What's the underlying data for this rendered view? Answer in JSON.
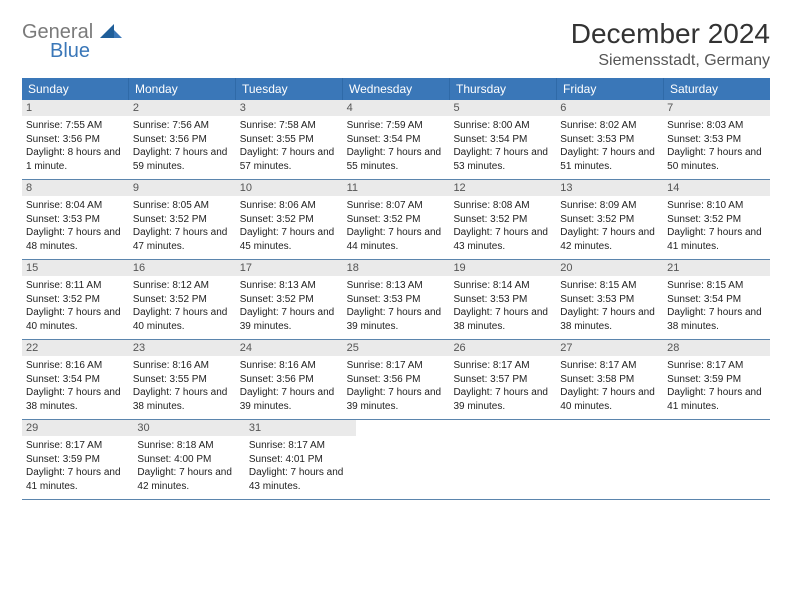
{
  "logo": {
    "word1": "General",
    "word2": "Blue"
  },
  "header": {
    "title": "December 2024",
    "location": "Siemensstadt, Germany"
  },
  "colors": {
    "header_blue": "#3a77b8",
    "row_divider": "#5b85ad",
    "daynum_bg": "#eaeaea",
    "logo_gray": "#7a7a7a",
    "logo_blue": "#3a77b8"
  },
  "typography": {
    "title_fontsize": 28,
    "location_fontsize": 16,
    "weekday_fontsize": 12,
    "daynum_fontsize": 11,
    "body_fontsize": 10
  },
  "weekdays": [
    "Sunday",
    "Monday",
    "Tuesday",
    "Wednesday",
    "Thursday",
    "Friday",
    "Saturday"
  ],
  "days": [
    {
      "n": "1",
      "sunrise": "Sunrise: 7:55 AM",
      "sunset": "Sunset: 3:56 PM",
      "daylight": "Daylight: 8 hours and 1 minute."
    },
    {
      "n": "2",
      "sunrise": "Sunrise: 7:56 AM",
      "sunset": "Sunset: 3:56 PM",
      "daylight": "Daylight: 7 hours and 59 minutes."
    },
    {
      "n": "3",
      "sunrise": "Sunrise: 7:58 AM",
      "sunset": "Sunset: 3:55 PM",
      "daylight": "Daylight: 7 hours and 57 minutes."
    },
    {
      "n": "4",
      "sunrise": "Sunrise: 7:59 AM",
      "sunset": "Sunset: 3:54 PM",
      "daylight": "Daylight: 7 hours and 55 minutes."
    },
    {
      "n": "5",
      "sunrise": "Sunrise: 8:00 AM",
      "sunset": "Sunset: 3:54 PM",
      "daylight": "Daylight: 7 hours and 53 minutes."
    },
    {
      "n": "6",
      "sunrise": "Sunrise: 8:02 AM",
      "sunset": "Sunset: 3:53 PM",
      "daylight": "Daylight: 7 hours and 51 minutes."
    },
    {
      "n": "7",
      "sunrise": "Sunrise: 8:03 AM",
      "sunset": "Sunset: 3:53 PM",
      "daylight": "Daylight: 7 hours and 50 minutes."
    },
    {
      "n": "8",
      "sunrise": "Sunrise: 8:04 AM",
      "sunset": "Sunset: 3:53 PM",
      "daylight": "Daylight: 7 hours and 48 minutes."
    },
    {
      "n": "9",
      "sunrise": "Sunrise: 8:05 AM",
      "sunset": "Sunset: 3:52 PM",
      "daylight": "Daylight: 7 hours and 47 minutes."
    },
    {
      "n": "10",
      "sunrise": "Sunrise: 8:06 AM",
      "sunset": "Sunset: 3:52 PM",
      "daylight": "Daylight: 7 hours and 45 minutes."
    },
    {
      "n": "11",
      "sunrise": "Sunrise: 8:07 AM",
      "sunset": "Sunset: 3:52 PM",
      "daylight": "Daylight: 7 hours and 44 minutes."
    },
    {
      "n": "12",
      "sunrise": "Sunrise: 8:08 AM",
      "sunset": "Sunset: 3:52 PM",
      "daylight": "Daylight: 7 hours and 43 minutes."
    },
    {
      "n": "13",
      "sunrise": "Sunrise: 8:09 AM",
      "sunset": "Sunset: 3:52 PM",
      "daylight": "Daylight: 7 hours and 42 minutes."
    },
    {
      "n": "14",
      "sunrise": "Sunrise: 8:10 AM",
      "sunset": "Sunset: 3:52 PM",
      "daylight": "Daylight: 7 hours and 41 minutes."
    },
    {
      "n": "15",
      "sunrise": "Sunrise: 8:11 AM",
      "sunset": "Sunset: 3:52 PM",
      "daylight": "Daylight: 7 hours and 40 minutes."
    },
    {
      "n": "16",
      "sunrise": "Sunrise: 8:12 AM",
      "sunset": "Sunset: 3:52 PM",
      "daylight": "Daylight: 7 hours and 40 minutes."
    },
    {
      "n": "17",
      "sunrise": "Sunrise: 8:13 AM",
      "sunset": "Sunset: 3:52 PM",
      "daylight": "Daylight: 7 hours and 39 minutes."
    },
    {
      "n": "18",
      "sunrise": "Sunrise: 8:13 AM",
      "sunset": "Sunset: 3:53 PM",
      "daylight": "Daylight: 7 hours and 39 minutes."
    },
    {
      "n": "19",
      "sunrise": "Sunrise: 8:14 AM",
      "sunset": "Sunset: 3:53 PM",
      "daylight": "Daylight: 7 hours and 38 minutes."
    },
    {
      "n": "20",
      "sunrise": "Sunrise: 8:15 AM",
      "sunset": "Sunset: 3:53 PM",
      "daylight": "Daylight: 7 hours and 38 minutes."
    },
    {
      "n": "21",
      "sunrise": "Sunrise: 8:15 AM",
      "sunset": "Sunset: 3:54 PM",
      "daylight": "Daylight: 7 hours and 38 minutes."
    },
    {
      "n": "22",
      "sunrise": "Sunrise: 8:16 AM",
      "sunset": "Sunset: 3:54 PM",
      "daylight": "Daylight: 7 hours and 38 minutes."
    },
    {
      "n": "23",
      "sunrise": "Sunrise: 8:16 AM",
      "sunset": "Sunset: 3:55 PM",
      "daylight": "Daylight: 7 hours and 38 minutes."
    },
    {
      "n": "24",
      "sunrise": "Sunrise: 8:16 AM",
      "sunset": "Sunset: 3:56 PM",
      "daylight": "Daylight: 7 hours and 39 minutes."
    },
    {
      "n": "25",
      "sunrise": "Sunrise: 8:17 AM",
      "sunset": "Sunset: 3:56 PM",
      "daylight": "Daylight: 7 hours and 39 minutes."
    },
    {
      "n": "26",
      "sunrise": "Sunrise: 8:17 AM",
      "sunset": "Sunset: 3:57 PM",
      "daylight": "Daylight: 7 hours and 39 minutes."
    },
    {
      "n": "27",
      "sunrise": "Sunrise: 8:17 AM",
      "sunset": "Sunset: 3:58 PM",
      "daylight": "Daylight: 7 hours and 40 minutes."
    },
    {
      "n": "28",
      "sunrise": "Sunrise: 8:17 AM",
      "sunset": "Sunset: 3:59 PM",
      "daylight": "Daylight: 7 hours and 41 minutes."
    },
    {
      "n": "29",
      "sunrise": "Sunrise: 8:17 AM",
      "sunset": "Sunset: 3:59 PM",
      "daylight": "Daylight: 7 hours and 41 minutes."
    },
    {
      "n": "30",
      "sunrise": "Sunrise: 8:18 AM",
      "sunset": "Sunset: 4:00 PM",
      "daylight": "Daylight: 7 hours and 42 minutes."
    },
    {
      "n": "31",
      "sunrise": "Sunrise: 8:17 AM",
      "sunset": "Sunset: 4:01 PM",
      "daylight": "Daylight: 7 hours and 43 minutes."
    }
  ]
}
